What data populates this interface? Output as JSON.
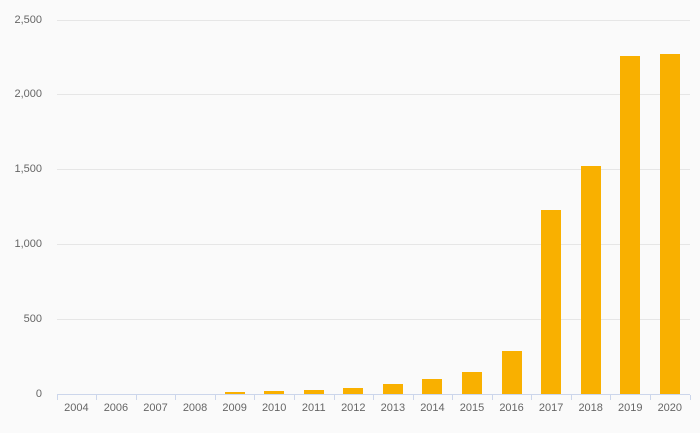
{
  "chart_data": {
    "type": "bar",
    "title": "",
    "xlabel": "",
    "ylabel": "",
    "categories": [
      "2004",
      "2006",
      "2007",
      "2008",
      "2009",
      "2010",
      "2011",
      "2012",
      "2013",
      "2014",
      "2015",
      "2016",
      "2017",
      "2018",
      "2019",
      "2020"
    ],
    "values": [
      0,
      0,
      1,
      2,
      13,
      18,
      24,
      40,
      67,
      97,
      150,
      285,
      1230,
      1527,
      2260,
      2275
    ],
    "ylim": [
      0,
      2500
    ],
    "yticks": [
      0,
      500,
      1000,
      1500,
      2000,
      2500
    ],
    "ytick_labels": [
      "0",
      "500",
      "1,000",
      "1,500",
      "2,000",
      "2,500"
    ],
    "grid": true,
    "legend": false,
    "colors": {
      "bar": "#f9b000",
      "background": "#fafafa",
      "gridline": "#e6e6e6",
      "axis_line": "#ccd6eb",
      "tick": "#ccd6eb",
      "label": "#666666"
    }
  }
}
